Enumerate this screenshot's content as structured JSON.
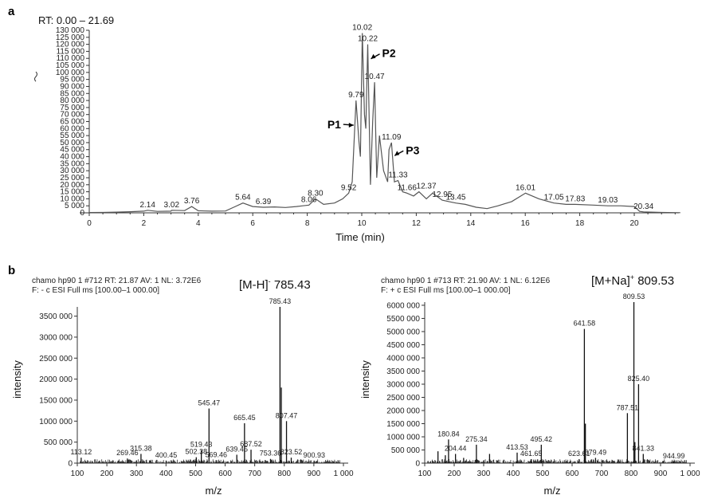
{
  "panel_a_label": "a",
  "panel_b_label": "b",
  "chart_data": [
    {
      "type": "line",
      "title": "RT: 0.00 – 21.69",
      "xlabel": "Time (min)",
      "ylabel": "",
      "ylim": [
        0,
        130000
      ],
      "xlim": [
        0,
        21.69
      ],
      "x_ticks": [
        "0",
        "2",
        "4",
        "6",
        "8",
        "10",
        "12",
        "14",
        "16",
        "18",
        "20"
      ],
      "y_ticks": [
        "0",
        "5 000",
        "10 000",
        "15 000",
        "20 000",
        "25 000",
        "30 000",
        "35 000",
        "40 000",
        "45 000",
        "50 000",
        "55 000",
        "60 000",
        "65 000",
        "70 000",
        "75 000",
        "80 000",
        "85 000",
        "90 000",
        "95 000",
        "100 000",
        "105 000",
        "110 000",
        "115 000",
        "120 000",
        "125 000",
        "130 000"
      ],
      "x": [
        0,
        0.5,
        1,
        1.5,
        2,
        2.14,
        2.5,
        3,
        3.02,
        3.5,
        3.76,
        4,
        4.5,
        5,
        5.3,
        5.64,
        6,
        6.39,
        6.8,
        7.2,
        7.6,
        8.06,
        8.3,
        8.6,
        9,
        9.3,
        9.52,
        9.65,
        9.79,
        9.9,
        9.95,
        10.02,
        10.1,
        10.15,
        10.22,
        10.32,
        10.4,
        10.47,
        10.55,
        10.65,
        10.8,
        10.95,
        11.0,
        11.09,
        11.2,
        11.33,
        11.5,
        11.66,
        11.9,
        12.1,
        12.37,
        12.6,
        12.95,
        13.2,
        13.45,
        13.8,
        14.2,
        14.6,
        15.0,
        15.5,
        16.01,
        16.5,
        17.05,
        17.5,
        17.83,
        18.5,
        19.03,
        19.5,
        20.0,
        20.2,
        20.34,
        21.0,
        21.69
      ],
      "y": [
        200,
        300,
        500,
        800,
        1200,
        1800,
        1000,
        1200,
        1800,
        1600,
        4500,
        1500,
        1200,
        1300,
        4000,
        7000,
        4500,
        4000,
        4200,
        3800,
        4500,
        5500,
        10000,
        6000,
        7000,
        10000,
        14000,
        22000,
        80000,
        50000,
        40000,
        128000,
        70000,
        60000,
        120000,
        20000,
        65000,
        93000,
        25000,
        55000,
        30000,
        22000,
        45000,
        50000,
        22000,
        23000,
        15000,
        14000,
        12000,
        15000,
        10000,
        14000,
        9000,
        8000,
        7000,
        6000,
        4000,
        3000,
        5000,
        8000,
        14000,
        10000,
        7000,
        6000,
        6000,
        5500,
        5000,
        5000,
        4500,
        1000,
        700,
        300,
        100
      ],
      "peak_labels": [
        {
          "t": "2.14",
          "x": 2.14,
          "y": 1800
        },
        {
          "t": "3.02",
          "x": 3.02,
          "y": 1800
        },
        {
          "t": "3.76",
          "x": 3.76,
          "y": 4500
        },
        {
          "t": "5.64",
          "x": 5.64,
          "y": 7000
        },
        {
          "t": "6.39",
          "x": 6.39,
          "y": 4000
        },
        {
          "t": "8.06",
          "x": 8.06,
          "y": 5500
        },
        {
          "t": "8.30",
          "x": 8.3,
          "y": 10000
        },
        {
          "t": "9.52",
          "x": 9.52,
          "y": 14000
        },
        {
          "t": "9.79",
          "x": 9.79,
          "y": 80000
        },
        {
          "t": "10.02",
          "x": 10.02,
          "y": 128000
        },
        {
          "t": "10.22",
          "x": 10.22,
          "y": 120000
        },
        {
          "t": "10.47",
          "x": 10.47,
          "y": 93000
        },
        {
          "t": "11.09",
          "x": 11.09,
          "y": 50000
        },
        {
          "t": "11.33",
          "x": 11.33,
          "y": 23000
        },
        {
          "t": "11.66",
          "x": 11.66,
          "y": 14000
        },
        {
          "t": "12.37",
          "x": 12.37,
          "y": 15000
        },
        {
          "t": "12.95",
          "x": 12.95,
          "y": 9000
        },
        {
          "t": "13.45",
          "x": 13.45,
          "y": 7000
        },
        {
          "t": "16.01",
          "x": 16.01,
          "y": 14000
        },
        {
          "t": "17.05",
          "x": 17.05,
          "y": 7000
        },
        {
          "t": "17.83",
          "x": 17.83,
          "y": 6000
        },
        {
          "t": "19.03",
          "x": 19.03,
          "y": 5000
        },
        {
          "t": "20.34",
          "x": 20.34,
          "y": 700
        }
      ],
      "annotations": [
        {
          "t": "P1",
          "x": 9.79,
          "y": 63000,
          "side": "left"
        },
        {
          "t": "P2",
          "x": 10.22,
          "y": 112000,
          "side": "right"
        },
        {
          "t": "P3",
          "x": 11.09,
          "y": 43000,
          "side": "right"
        }
      ]
    },
    {
      "type": "bar",
      "header": [
        "chamo hp90 1 #712 RT: 21.87 AV: 1 NL: 3.72E6",
        "F: - c ESI Full ms [100.00–1 000.00]"
      ],
      "big_label_main": "[M-H]",
      "big_label_sup": "-",
      "big_label_val": " 785.43",
      "xlabel": "m/z",
      "ylabel": "intensity",
      "xlim": [
        100,
        1000
      ],
      "ylim": [
        0,
        3720000
      ],
      "x_ticks": [
        "100",
        "200",
        "300",
        "400",
        "500",
        "600",
        "700",
        "800",
        "900",
        "1 000"
      ],
      "y_ticks": [
        "0",
        "500 000",
        "1000 000",
        "1500 000",
        "2000 000",
        "2500 000",
        "3000 000",
        "3500 000"
      ],
      "peaks": [
        {
          "mz": 113.12,
          "v": 130000,
          "label": "113.12"
        },
        {
          "mz": 269.46,
          "v": 110000,
          "label": "269.46"
        },
        {
          "mz": 315.38,
          "v": 220000,
          "label": "315.38"
        },
        {
          "mz": 400.45,
          "v": 60000,
          "label": "400.45"
        },
        {
          "mz": 502.38,
          "v": 140000,
          "label": "502.38"
        },
        {
          "mz": 519.43,
          "v": 310000,
          "label": "519.43"
        },
        {
          "mz": 545.47,
          "v": 1300000,
          "label": "545.47"
        },
        {
          "mz": 569.46,
          "v": 70000,
          "label": "569.46"
        },
        {
          "mz": 639.45,
          "v": 200000,
          "label": "639.45"
        },
        {
          "mz": 665.45,
          "v": 950000,
          "label": "665.45"
        },
        {
          "mz": 687.52,
          "v": 320000,
          "label": "687.52"
        },
        {
          "mz": 753.36,
          "v": 100000,
          "label": "753.36"
        },
        {
          "mz": 785.43,
          "v": 3720000,
          "label": "785.43"
        },
        {
          "mz": 807.47,
          "v": 1000000,
          "label": "807.47"
        },
        {
          "mz": 823.52,
          "v": 130000,
          "label": "823.52"
        },
        {
          "mz": 900.93,
          "v": 60000,
          "label": "900.93"
        },
        {
          "mz": 790,
          "v": 1800000,
          "label": ""
        }
      ]
    },
    {
      "type": "bar",
      "header": [
        "chamo hp90 1 #713 RT: 21.90 AV: 1 NL: 6.12E6",
        "F: + c ESI Full ms [100.00–1 000.00]"
      ],
      "big_label_main": "[M+Na]",
      "big_label_sup": "+",
      "big_label_val": " 809.53",
      "xlabel": "m/z",
      "ylabel": "intensity",
      "xlim": [
        100,
        1000
      ],
      "ylim": [
        0,
        6120000
      ],
      "x_ticks": [
        "100",
        "200",
        "300",
        "400",
        "500",
        "600",
        "700",
        "800",
        "900",
        "1 000"
      ],
      "y_ticks": [
        "0",
        "500 000",
        "1000 000",
        "1500 000",
        "2000 000",
        "2500 000",
        "3000 000",
        "3500 000",
        "4000 000",
        "4500 000",
        "5000 000",
        "5500 000",
        "6000 000"
      ],
      "peaks": [
        {
          "mz": 180.84,
          "v": 900000,
          "label": "180.84"
        },
        {
          "mz": 204.44,
          "v": 350000,
          "label": "204.44"
        },
        {
          "mz": 275.34,
          "v": 700000,
          "label": "275.34"
        },
        {
          "mz": 413.53,
          "v": 400000,
          "label": "413.53"
        },
        {
          "mz": 461.65,
          "v": 150000,
          "label": "461.65"
        },
        {
          "mz": 495.42,
          "v": 700000,
          "label": "495.42"
        },
        {
          "mz": 623.61,
          "v": 150000,
          "label": "623.61"
        },
        {
          "mz": 641.58,
          "v": 5100000,
          "label": "641.58"
        },
        {
          "mz": 679.49,
          "v": 200000,
          "label": "679.49"
        },
        {
          "mz": 787.51,
          "v": 1900000,
          "label": "787.51"
        },
        {
          "mz": 809.53,
          "v": 6120000,
          "label": "809.53"
        },
        {
          "mz": 825.4,
          "v": 3000000,
          "label": "825.40"
        },
        {
          "mz": 841.33,
          "v": 350000,
          "label": "841.33"
        },
        {
          "mz": 944.99,
          "v": 60000,
          "label": "944.99"
        },
        {
          "mz": 145,
          "v": 450000,
          "label": ""
        },
        {
          "mz": 170,
          "v": 300000,
          "label": ""
        },
        {
          "mz": 232,
          "v": 200000,
          "label": ""
        },
        {
          "mz": 320,
          "v": 350000,
          "label": ""
        },
        {
          "mz": 645,
          "v": 1500000,
          "label": ""
        },
        {
          "mz": 813,
          "v": 800000,
          "label": ""
        }
      ]
    }
  ]
}
